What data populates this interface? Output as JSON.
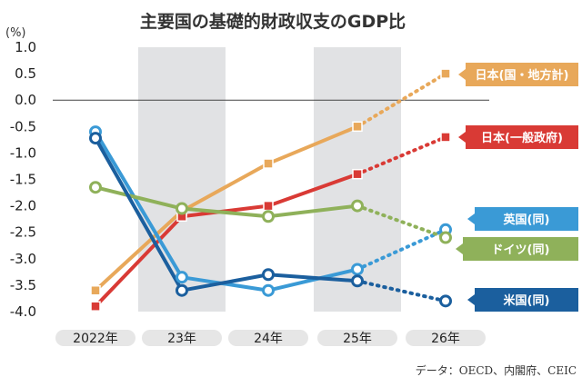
{
  "chart_data": {
    "type": "line",
    "title": "主要国の基礎的財政収支のGDP比",
    "unit": "(%)",
    "source": "データ：OECD、内閣府、CEIC",
    "categories": [
      "2022年",
      "23年",
      "24年",
      "25年",
      "26年"
    ],
    "ylim": [
      -4.0,
      1.0
    ],
    "yticks": [
      "1.0",
      "0.5",
      "0.0",
      "-0.5",
      "-1.0",
      "-1.5",
      "-2.0",
      "-2.5",
      "-3.0",
      "-3.5",
      "-4.0"
    ],
    "shaded_categories": [
      "23年",
      "25年"
    ],
    "zero_line": true,
    "series": [
      {
        "name": "日本(国・地方計)",
        "color": "#e8a85a",
        "marker": "square",
        "values": [
          -3.6,
          -2.1,
          -1.2,
          -0.5,
          0.5
        ],
        "dashed_from_index": 3
      },
      {
        "name": "日本(一般政府)",
        "color": "#d93a35",
        "marker": "square",
        "values": [
          -3.9,
          -2.2,
          -2.0,
          -1.4,
          -0.7
        ],
        "dashed_from_index": 3
      },
      {
        "name": "英国(同)",
        "color": "#3a9ad6",
        "marker": "circle",
        "values": [
          -0.6,
          -3.35,
          -3.6,
          -3.2,
          -2.45
        ],
        "dashed_from_index": 3
      },
      {
        "name": "ドイツ(同)",
        "color": "#8fb15a",
        "marker": "circle",
        "values": [
          -1.65,
          -2.05,
          -2.2,
          -2.0,
          -2.6
        ],
        "dashed_from_index": 3
      },
      {
        "name": "米国(同)",
        "color": "#1b5f9e",
        "marker": "circle",
        "values": [
          -0.72,
          -3.6,
          -3.3,
          -3.42,
          -3.8
        ],
        "dashed_from_index": 3
      }
    ]
  }
}
